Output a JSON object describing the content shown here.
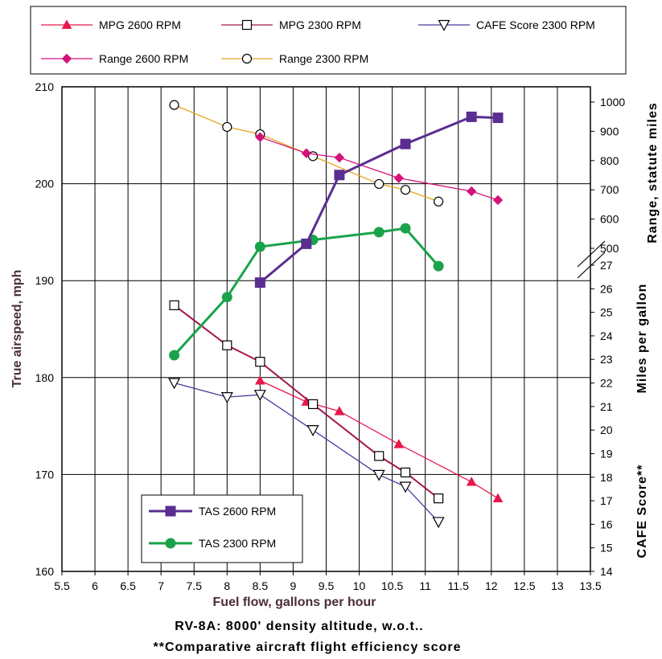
{
  "chart_data": {
    "type": "line",
    "xlabel": "Fuel flow, gallons per hour",
    "ylabel_left": "True airspeed, mph",
    "ylabel_right_range": "Range, statute miles",
    "ylabel_right_mpg": "Miles per gallon",
    "ylabel_right_cafe": "CAFE Score**",
    "caption_line1": "RV-8A: 8000' density altitude, w.o.t..",
    "caption_line2": "**Comparative aircraft flight efficiency score",
    "xlim": [
      5.5,
      13.5
    ],
    "x_ticks": [
      "5.5",
      "6",
      "6.5",
      "7",
      "7.5",
      "8",
      "8.5",
      "9",
      "9.5",
      "10",
      "10.5",
      "11",
      "11.5",
      "12",
      "12.5",
      "13",
      "13.5"
    ],
    "ylim_left": [
      160,
      210
    ],
    "y_left_ticks": [
      "160",
      "170",
      "180",
      "190",
      "200",
      "210"
    ],
    "ylim_right_range": [
      500,
      1000
    ],
    "y_right_range_ticks": [
      "500",
      "600",
      "700",
      "800",
      "900",
      "1000"
    ],
    "ylim_right_mpg": [
      14,
      27
    ],
    "y_right_mpg_ticks": [
      "14",
      "15",
      "16",
      "17",
      "18",
      "19",
      "20",
      "21",
      "22",
      "23",
      "24",
      "25",
      "26",
      "27"
    ],
    "grid": true,
    "legend_top": [
      {
        "name": "MPG 2600 RPM",
        "color": "#e8174a",
        "marker": "triangle-filled"
      },
      {
        "name": "MPG 2300 RPM",
        "color": "#a3154d",
        "marker": "square-open"
      },
      {
        "name": "CAFE Score 2300 RPM",
        "color": "#4a3a9c",
        "marker": "triangle-down-open"
      },
      {
        "name": "Range 2600 RPM",
        "color": "#d4127a",
        "marker": "diamond-filled"
      },
      {
        "name": "Range 2300 RPM",
        "color": "#e8a317",
        "marker": "circle-open"
      }
    ],
    "legend_inner": [
      {
        "name": "TAS 2600 RPM",
        "color": "#5a2d91",
        "marker": "square-filled"
      },
      {
        "name": "TAS 2300 RPM",
        "color": "#1aa34a",
        "marker": "circle-filled"
      }
    ],
    "series": [
      {
        "name": "TAS 2600 RPM",
        "axis": "left",
        "color": "#5a2d91",
        "marker": "square-filled",
        "width": 3,
        "x": [
          8.5,
          9.2,
          9.7,
          10.7,
          11.7,
          12.1
        ],
        "y": [
          189.8,
          193.8,
          200.9,
          204.1,
          206.9,
          206.8
        ]
      },
      {
        "name": "TAS 2300 RPM",
        "axis": "left",
        "color": "#1aa34a",
        "marker": "circle-filled",
        "width": 3,
        "x": [
          7.2,
          8.0,
          8.5,
          9.3,
          10.3,
          10.7,
          11.2
        ],
        "y": [
          182.3,
          188.3,
          193.5,
          194.2,
          195.0,
          195.4,
          191.5
        ]
      },
      {
        "name": "Range 2600 RPM",
        "axis": "range",
        "color": "#d4127a",
        "marker": "diamond-filled",
        "width": 1.3,
        "x": [
          8.5,
          9.2,
          9.7,
          10.6,
          11.7,
          12.1
        ],
        "y": [
          880,
          825,
          810,
          740,
          695,
          665
        ]
      },
      {
        "name": "Range 2300 RPM",
        "axis": "range",
        "color": "#e8a317",
        "marker": "circle-open",
        "width": 1.3,
        "x": [
          7.2,
          8.0,
          8.5,
          9.3,
          10.3,
          10.7,
          11.2
        ],
        "y": [
          990,
          915,
          890,
          815,
          720,
          700,
          660
        ]
      },
      {
        "name": "MPG 2600 RPM",
        "axis": "mpg",
        "color": "#e8174a",
        "marker": "triangle-filled",
        "width": 1.3,
        "x": [
          8.5,
          9.2,
          9.7,
          10.6,
          11.7,
          12.1
        ],
        "y": [
          22.1,
          21.2,
          20.8,
          19.4,
          17.8,
          17.1
        ]
      },
      {
        "name": "MPG 2300 RPM",
        "axis": "mpg",
        "color": "#a3154d",
        "marker": "square-open",
        "width": 2,
        "x": [
          7.2,
          8.0,
          8.5,
          9.3,
          10.3,
          10.7,
          11.2
        ],
        "y": [
          25.3,
          23.6,
          22.9,
          21.1,
          18.9,
          18.2,
          17.1
        ]
      },
      {
        "name": "CAFE Score 2300 RPM",
        "axis": "mpg",
        "color": "#4a3a9c",
        "marker": "triangle-down-open",
        "width": 1.3,
        "x": [
          7.2,
          8.0,
          8.5,
          9.3,
          10.3,
          10.7,
          11.2
        ],
        "y": [
          22.0,
          21.4,
          21.5,
          20.0,
          18.1,
          17.6,
          16.1
        ]
      }
    ]
  }
}
